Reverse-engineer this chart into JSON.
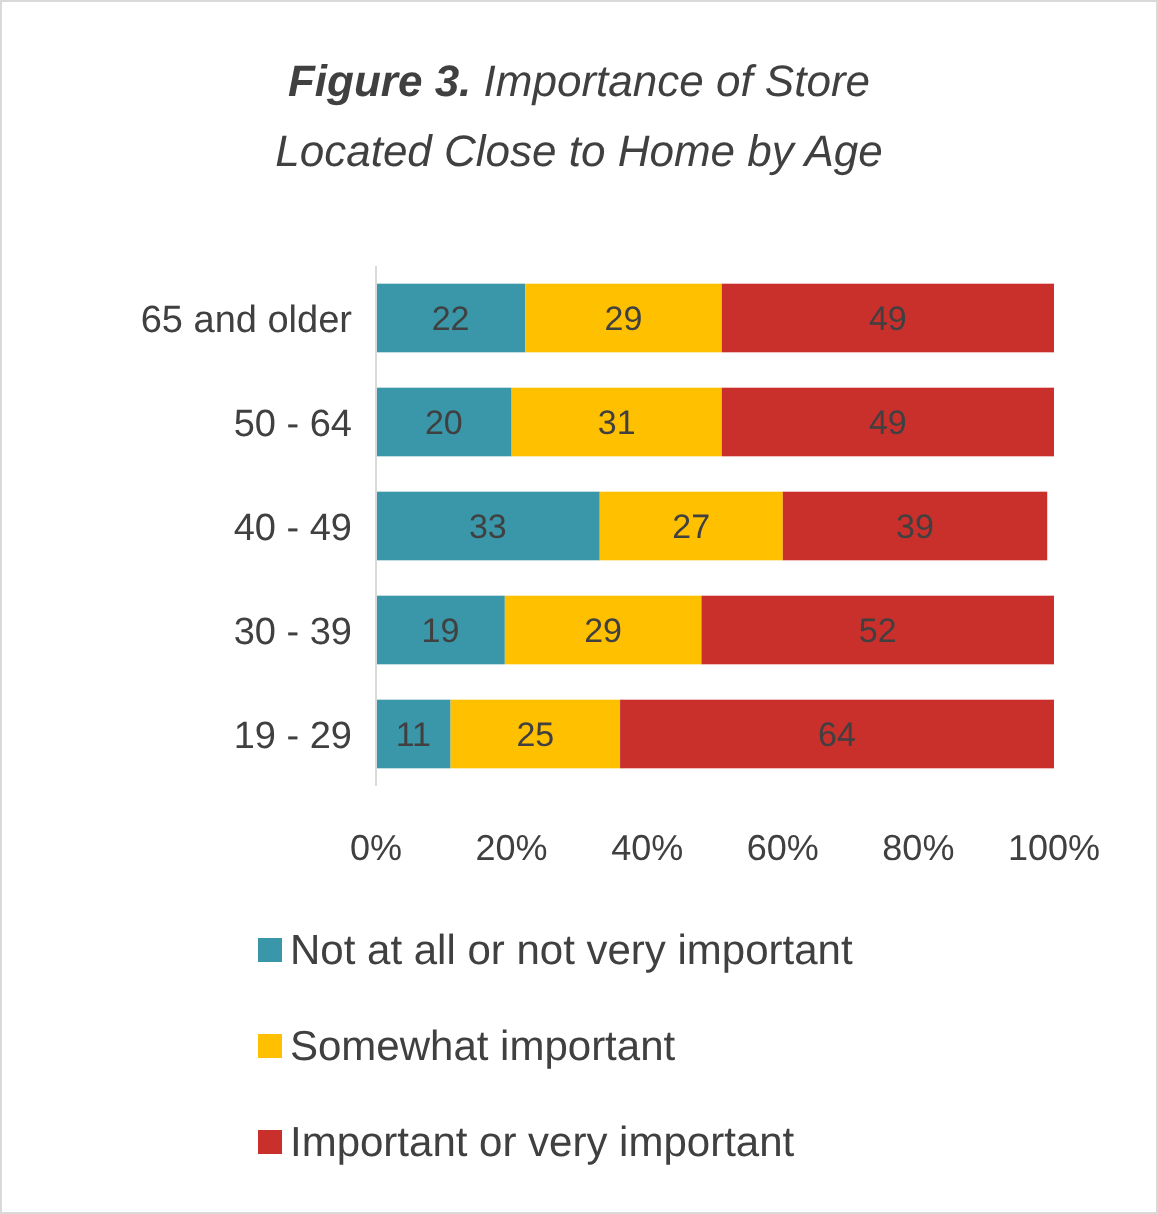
{
  "chart_data": {
    "type": "bar",
    "orientation": "horizontal",
    "stacked": true,
    "title": "Figure 3. Importance of Store Located Close to Home by Age",
    "categories": [
      "65 and older",
      "50 - 64",
      "40 - 49",
      "30 - 39",
      "19 - 29"
    ],
    "series": [
      {
        "name": "Not at all or not very important",
        "color": "#3a97a9",
        "values": [
          22,
          20,
          33,
          19,
          11
        ]
      },
      {
        "name": "Somewhat important",
        "color": "#ffc000",
        "values": [
          29,
          31,
          27,
          29,
          25
        ]
      },
      {
        "name": "Important or very important",
        "color": "#c9302c",
        "values": [
          49,
          49,
          39,
          52,
          64
        ]
      }
    ],
    "xlim": [
      0,
      100
    ],
    "xticks": [
      {
        "value": 0,
        "label": "0%"
      },
      {
        "value": 20,
        "label": "20%"
      },
      {
        "value": 40,
        "label": "40%"
      },
      {
        "value": 60,
        "label": "60%"
      },
      {
        "value": 80,
        "label": "80%"
      },
      {
        "value": 100,
        "label": "100%"
      }
    ],
    "data_labels": true,
    "legend": "bottom",
    "grid": false
  }
}
